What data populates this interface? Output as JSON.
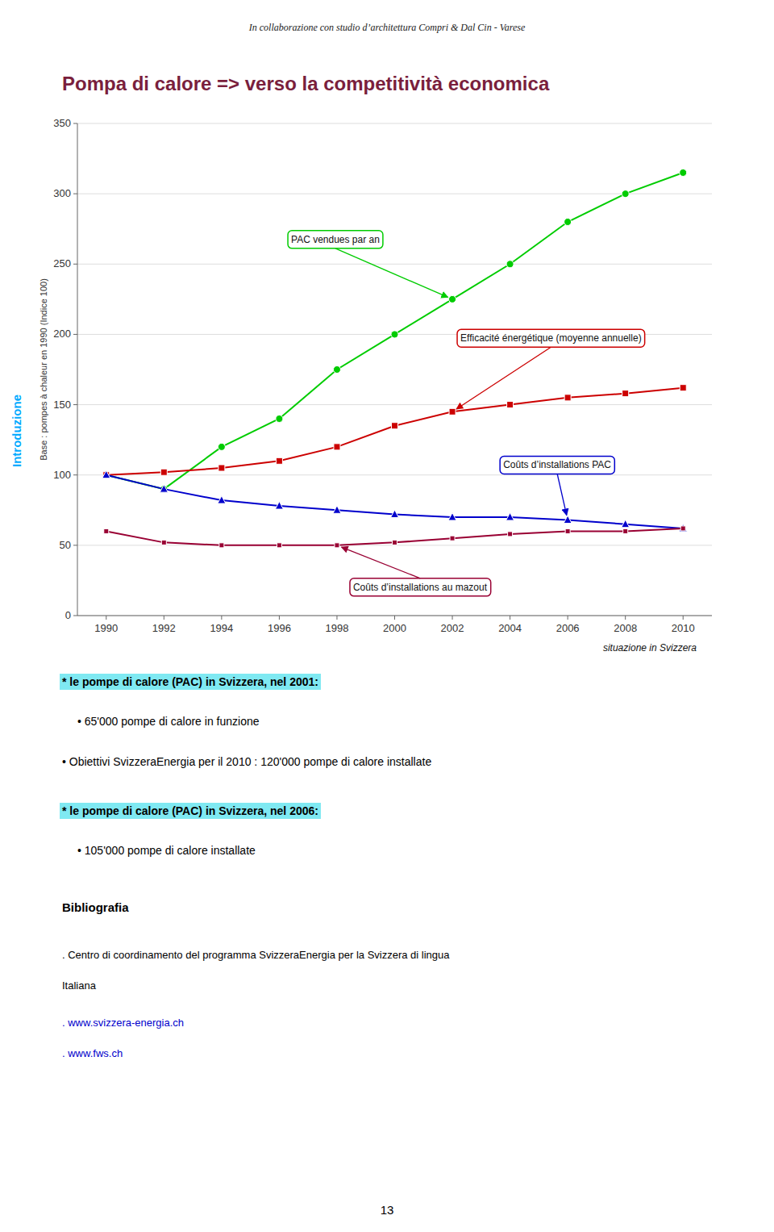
{
  "header": "In collaborazione con studio d’architettura Compri & Dal Cin - Varese",
  "side_label": "Introduzione",
  "note": "situazione in Svizzera",
  "chart_data": {
    "type": "line",
    "title": "Pompa di calore  =>  verso la competitività economica",
    "ylabel": "Base : pompes à chaleur en 1990 (Indice 100)",
    "x": [
      1990,
      1992,
      1994,
      1996,
      1998,
      2000,
      2002,
      2004,
      2006,
      2008,
      2010
    ],
    "series": [
      {
        "name": "PAC vendues par an",
        "color": "#00cc00",
        "marker": "circle",
        "values": [
          100,
          90,
          120,
          140,
          175,
          200,
          225,
          250,
          280,
          300,
          315
        ]
      },
      {
        "name": "Efficacité énergétique (moyenne annuelle)",
        "color": "#cc0000",
        "marker": "square",
        "values": [
          100,
          102,
          105,
          110,
          120,
          135,
          145,
          150,
          155,
          158,
          162
        ]
      },
      {
        "name": "Coûts d’installations PAC",
        "color": "#0000cc",
        "marker": "triangle",
        "values": [
          100,
          90,
          82,
          78,
          75,
          72,
          70,
          70,
          68,
          65,
          62
        ]
      },
      {
        "name": "Coûts d’installations au mazout",
        "color": "#990033",
        "marker": "square",
        "values": [
          60,
          52,
          50,
          50,
          50,
          52,
          55,
          58,
          60,
          60,
          62
        ]
      }
    ],
    "xlim": [
      1989,
      2011
    ],
    "xticks": [
      1990,
      1992,
      1994,
      1996,
      1998,
      2000,
      2002,
      2004,
      2006,
      2008,
      2010
    ],
    "ylim": [
      0,
      350
    ],
    "yticks": [
      0,
      50,
      100,
      150,
      200,
      250,
      300,
      350
    ],
    "grid": true
  },
  "sections": [
    {
      "heading": "* le pompe di calore (PAC) in Svizzera, nel 2001:",
      "bullets": [
        "•  65'000 pompe di calore in funzione"
      ]
    },
    {
      "bullets": [
        "•  Obiettivi SvizzeraEnergia per il 2010 :  120'000 pompe di calore installate"
      ]
    },
    {
      "heading": "* le pompe di calore (PAC) in Svizzera, nel 2006:",
      "bullets": [
        "•  105'000 pompe di calore installate"
      ]
    }
  ],
  "bibliography": {
    "title": "Bibliografia",
    "entries": [
      ". Centro di coordinamento del programma SvizzeraEnergia per la Svizzera di lingua",
      "Italiana"
    ],
    "links": [
      ". www.svizzera-energia.ch",
      ". www.fws.ch"
    ]
  },
  "page_number": "13"
}
